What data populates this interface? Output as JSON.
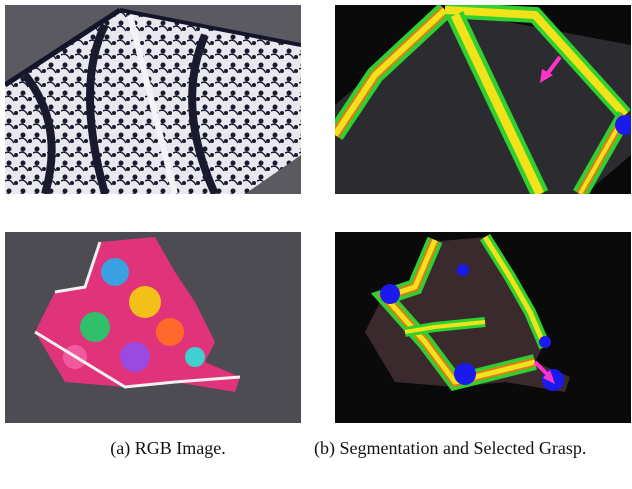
{
  "figure": {
    "captions": {
      "a": "(a) RGB Image.",
      "b": "(b) Segmentation and Selected Grasp."
    },
    "colors": {
      "towel_dark": "#1a1a2e",
      "towel_light": "#e8e8ee",
      "table_gray": "#5a5a60",
      "seg_yellow": "#f2e21a",
      "seg_green": "#2fd02f",
      "seg_orange": "#e07a1e",
      "seg_blue": "#1a1aee",
      "grasp_arrow": "#ff33cc",
      "seg_background": "#0a0a0a"
    }
  }
}
